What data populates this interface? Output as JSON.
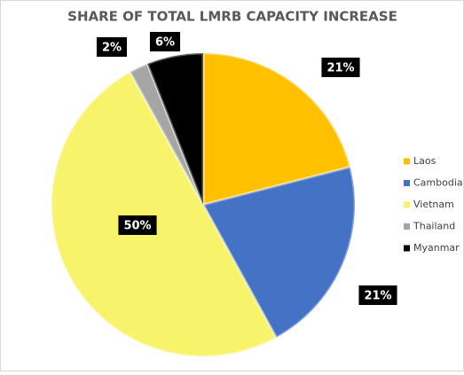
{
  "chart_data": {
    "type": "pie",
    "title": "SHARE OF TOTAL LMRB CAPACITY INCREASE",
    "categories": [
      "Laos",
      "Cambodia",
      "Vietnam",
      "Thailand",
      "Myanmar"
    ],
    "values": [
      21,
      21,
      50,
      2,
      6
    ],
    "value_labels": [
      "21%",
      "21%",
      "50%",
      "2%",
      "6%"
    ],
    "colors": [
      "#FFC000",
      "#4472C4",
      "#F7F36B",
      "#A5A5A5",
      "#000000"
    ],
    "legend": "right"
  }
}
